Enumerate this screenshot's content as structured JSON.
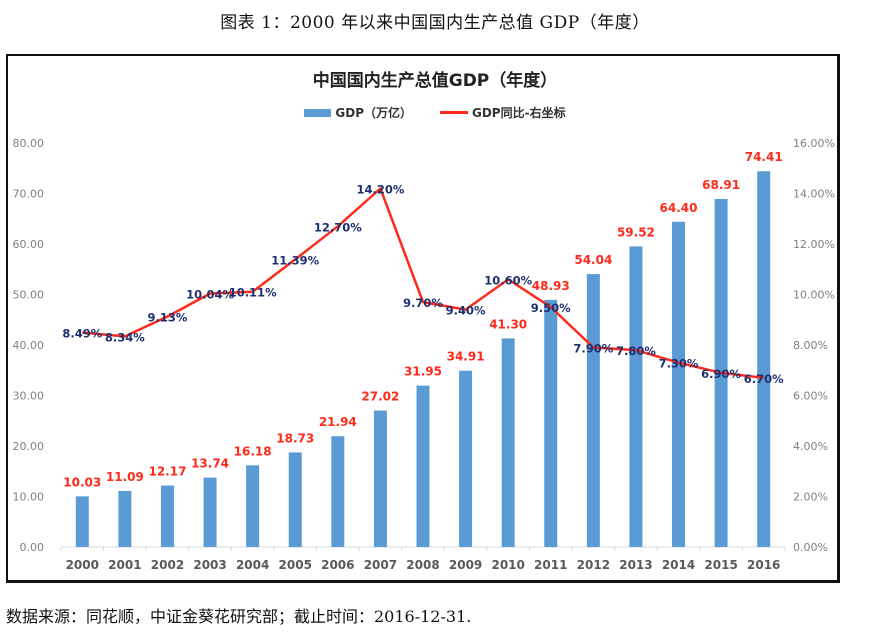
{
  "figure": {
    "caption": "图表 1：2000 年以来中国国内生产总值 GDP（年度）",
    "source_note": "数据来源：同花顺，中证金葵花研究部；截止时间：2016-12-31."
  },
  "colors": {
    "bar": "#5b9bd5",
    "line": "#ff2a1a",
    "bar_label": "#ff2a1a",
    "line_label": "#1f3070",
    "axis_text": "#808080",
    "category_text": "#595959"
  },
  "chart_data": {
    "type": "bar",
    "title": "中国国内生产总值GDP（年度）",
    "xlabel": "",
    "ylabel": "",
    "y2label": "",
    "legend_position": "top-center",
    "grid": false,
    "categories": [
      "2000",
      "2001",
      "2002",
      "2003",
      "2004",
      "2005",
      "2006",
      "2007",
      "2008",
      "2009",
      "2010",
      "2011",
      "2012",
      "2013",
      "2014",
      "2015",
      "2016"
    ],
    "ylim": [
      0,
      80
    ],
    "y_ticks": [
      "0.00",
      "10.00",
      "20.00",
      "30.00",
      "40.00",
      "50.00",
      "60.00",
      "70.00",
      "80.00"
    ],
    "y2lim": [
      0,
      0.16
    ],
    "y2_ticks": [
      "0.00%",
      "2.00%",
      "4.00%",
      "6.00%",
      "8.00%",
      "10.00%",
      "12.00%",
      "14.00%",
      "16.00%"
    ],
    "series": [
      {
        "name": "GDP（万亿）",
        "type": "bar",
        "axis": "left",
        "values": [
          10.03,
          11.09,
          12.17,
          13.74,
          16.18,
          18.73,
          21.94,
          27.02,
          31.95,
          34.91,
          41.3,
          48.93,
          54.04,
          59.52,
          64.4,
          68.91,
          74.41
        ],
        "labels": [
          "10.03",
          "11.09",
          "12.17",
          "13.74",
          "16.18",
          "18.73",
          "21.94",
          "27.02",
          "31.95",
          "34.91",
          "41.30",
          "48.93",
          "54.04",
          "59.52",
          "64.40",
          "68.91",
          "74.41"
        ]
      },
      {
        "name": "GDP同比-右坐标",
        "type": "line",
        "axis": "right",
        "values": [
          0.0849,
          0.0834,
          0.0913,
          0.1004,
          0.1011,
          0.1139,
          0.127,
          0.142,
          0.097,
          0.094,
          0.106,
          0.095,
          0.079,
          0.078,
          0.073,
          0.069,
          0.067
        ],
        "labels": [
          "8.49%",
          "8.34%",
          "9.13%",
          "10.04%",
          "10.11%",
          "11.39%",
          "12.70%",
          "14.20%",
          "9.70%",
          "9.40%",
          "10.60%",
          "9.50%",
          "7.90%",
          "7.80%",
          "7.30%",
          "6.90%",
          "6.70%"
        ]
      }
    ]
  }
}
